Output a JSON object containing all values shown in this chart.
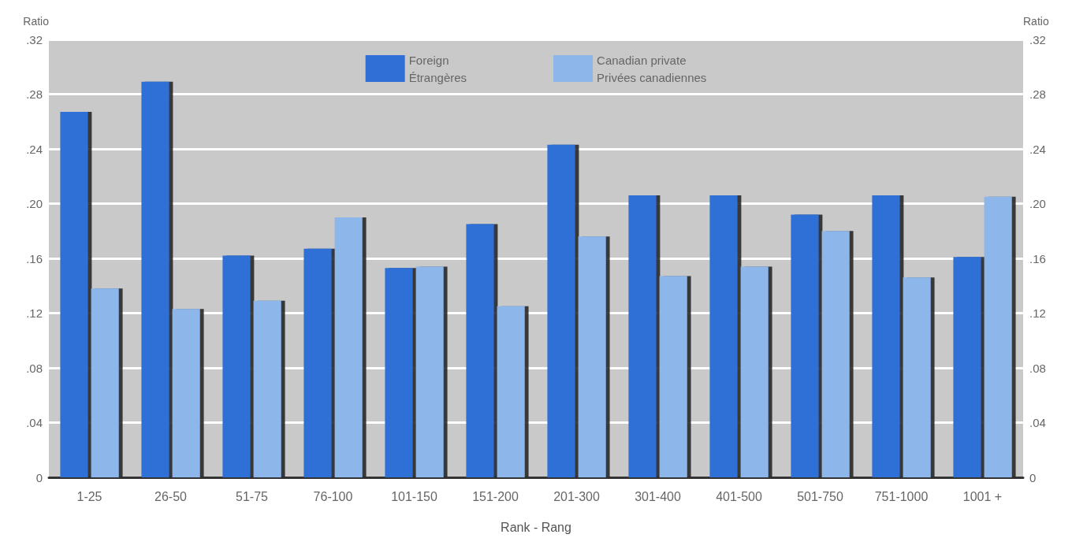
{
  "chart_data": {
    "type": "bar",
    "xlabel": "Rank - Rang",
    "ylabel": "Ratio",
    "y2label": "Ratio",
    "categories": [
      "1-25",
      "26-50",
      "51-75",
      "76-100",
      "101-150",
      "151-200",
      "201-300",
      "301-400",
      "401-500",
      "501-750",
      "751-1000",
      "1001 +"
    ],
    "series": [
      {
        "name": "Foreign\nÉtrangères",
        "color": "#2f6fd6",
        "values": [
          0.267,
          0.289,
          0.162,
          0.167,
          0.153,
          0.185,
          0.243,
          0.206,
          0.206,
          0.192,
          0.206,
          0.161
        ]
      },
      {
        "name": "Canadian private\nPrivées canadiennes",
        "color": "#8db6ea",
        "values": [
          0.138,
          0.123,
          0.129,
          0.19,
          0.154,
          0.125,
          0.176,
          0.147,
          0.154,
          0.18,
          0.146,
          0.205
        ]
      }
    ],
    "ylim": [
      0,
      0.32
    ],
    "yticks": [
      0,
      {
        "value": 0.04,
        "label": ".04"
      },
      {
        "value": 0.08,
        "label": ".08"
      },
      {
        "value": 0.12,
        "label": ".12"
      },
      {
        "value": 0.16,
        "label": ".16"
      },
      {
        "value": 0.2,
        "label": ".20"
      },
      {
        "value": 0.24,
        "label": ".24"
      },
      {
        "value": 0.28,
        "label": ".28"
      },
      {
        "value": 0.32,
        "label": ".32"
      }
    ],
    "y2lim": [
      0,
      0.32
    ],
    "y2ticks": [
      0,
      {
        "value": 0.04,
        "label": ".04"
      },
      {
        "value": 0.08,
        "label": ".08"
      },
      {
        "value": 0.12,
        "label": ".12"
      },
      {
        "value": 0.16,
        "label": ".16"
      },
      {
        "value": 0.2,
        "label": ".20"
      },
      {
        "value": 0.24,
        "label": ".24"
      },
      {
        "value": 0.28,
        "label": ".28"
      },
      {
        "value": 0.32,
        "label": ".32"
      }
    ],
    "grid": "y",
    "legend": "top"
  }
}
